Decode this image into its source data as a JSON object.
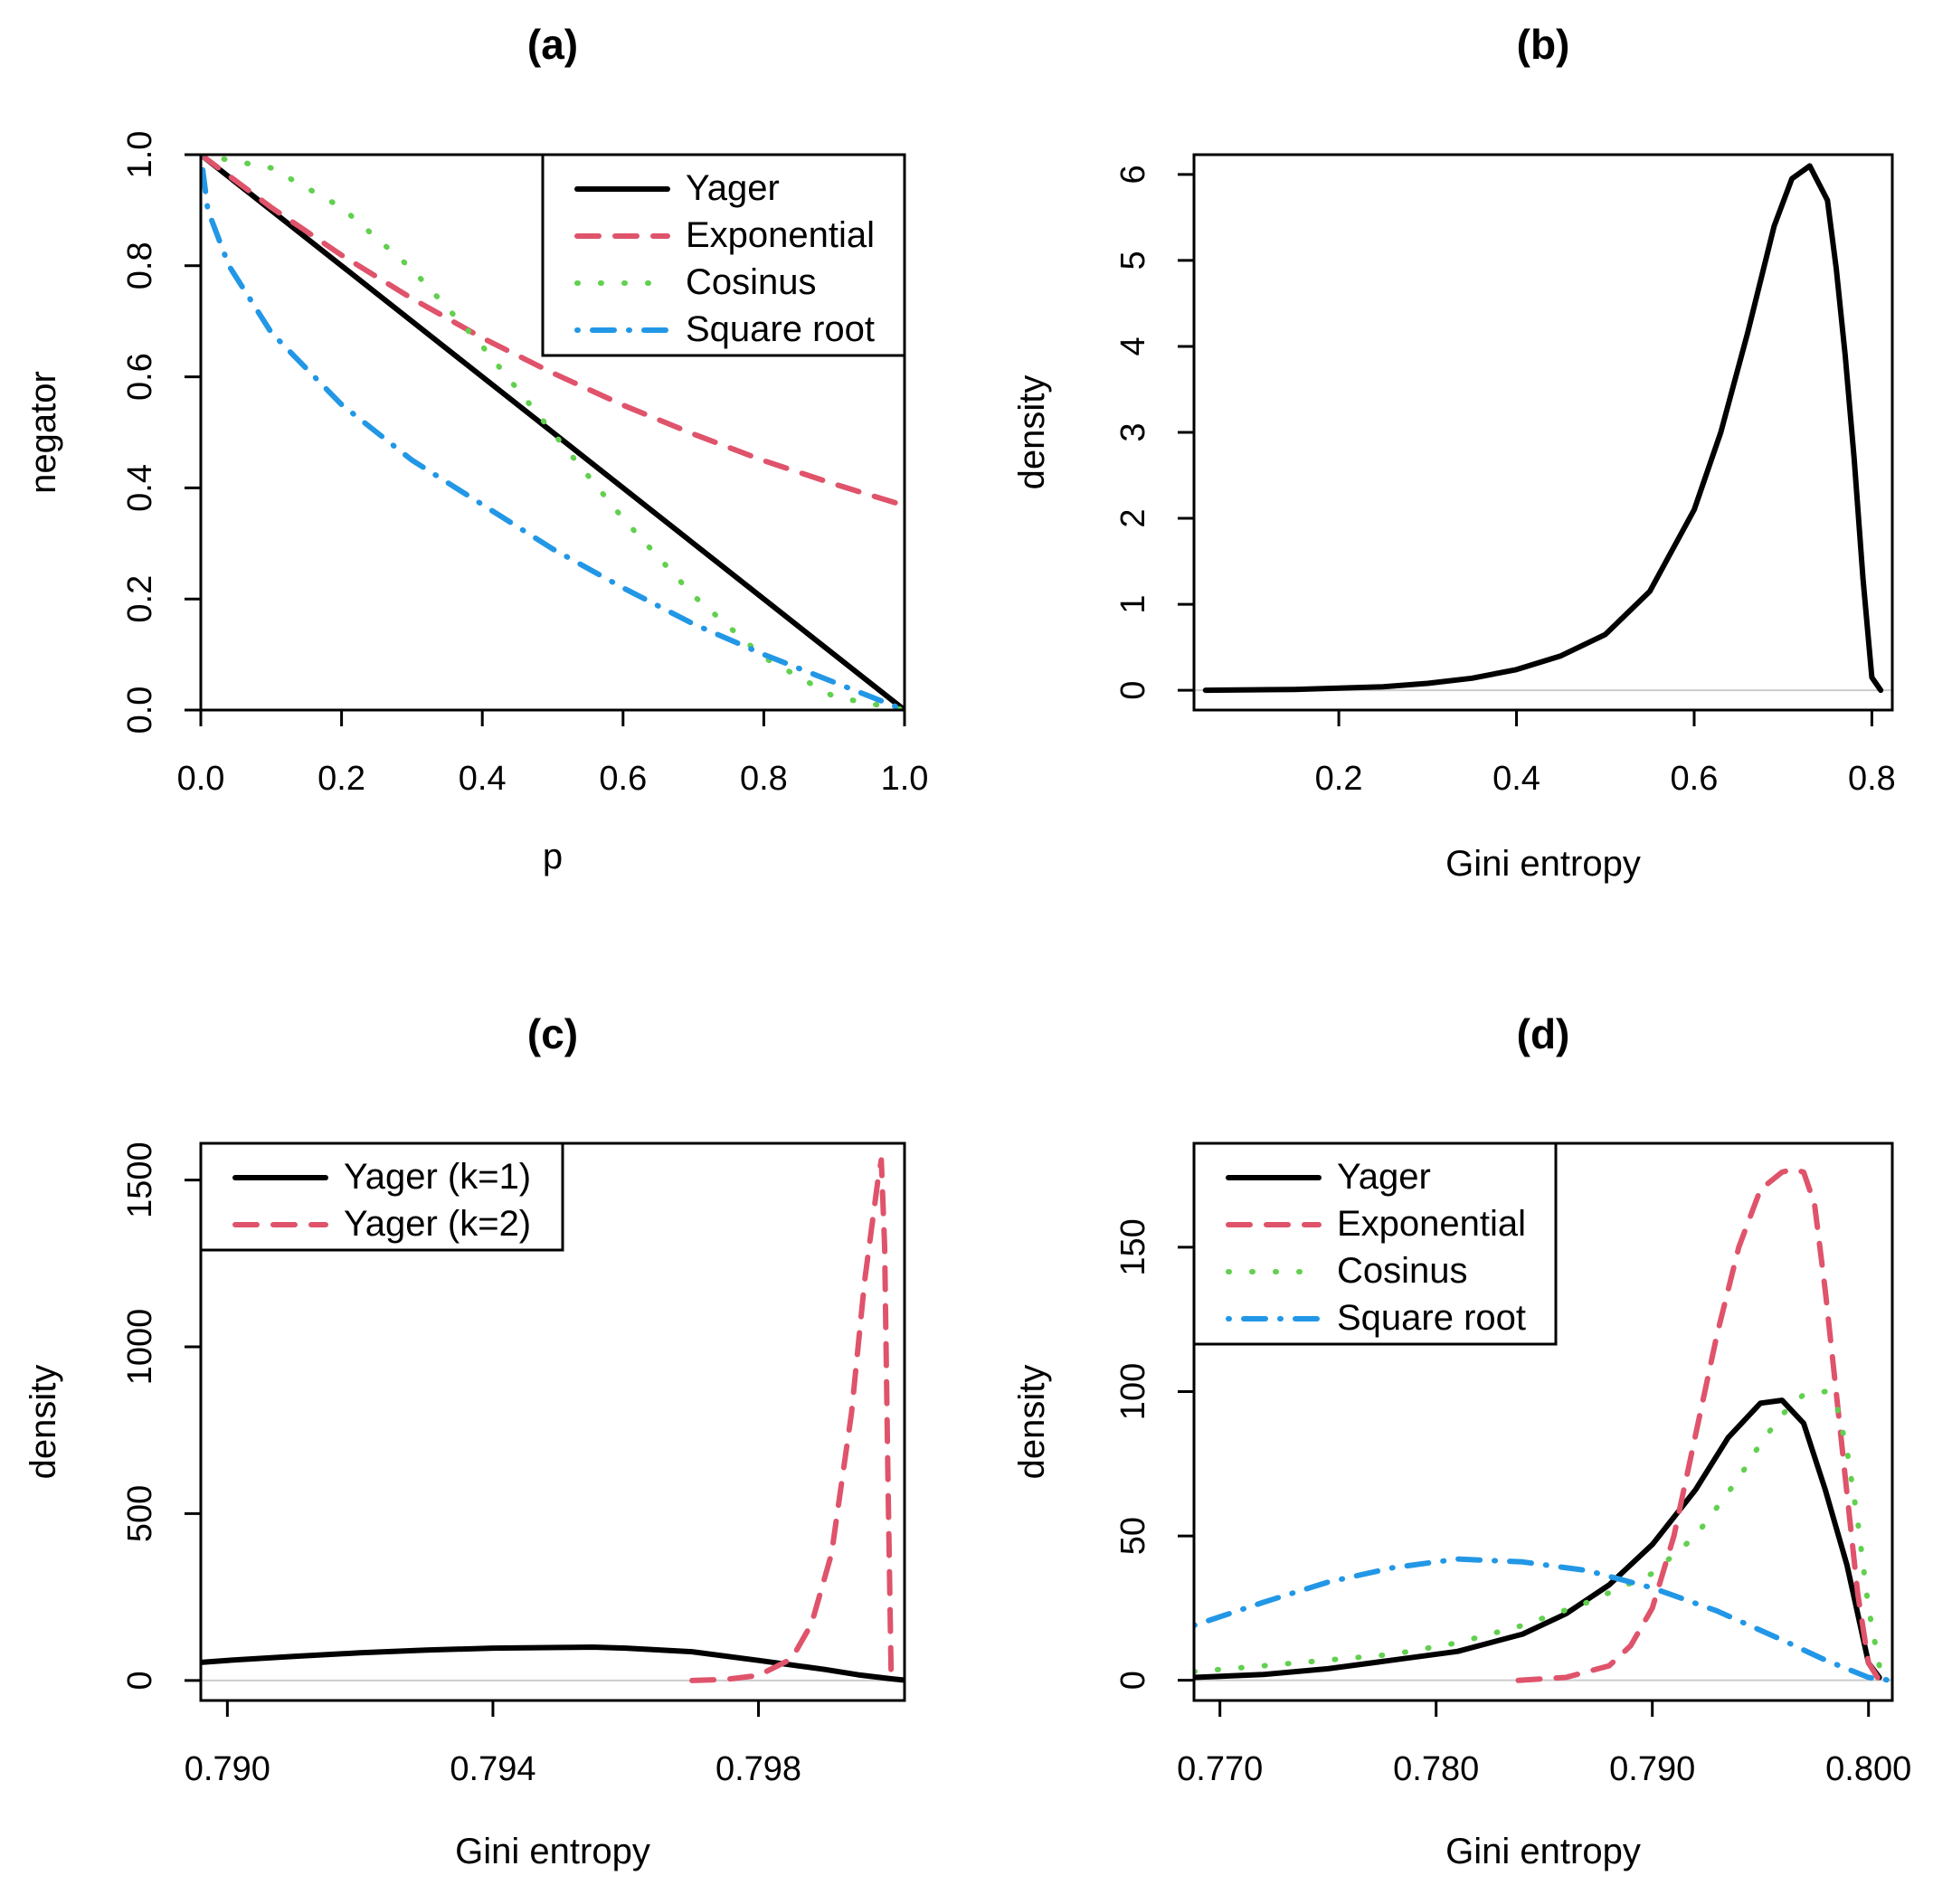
{
  "colors": {
    "black": "#000000",
    "red": "#DF536B",
    "green": "#61D04F",
    "blue": "#2297E6",
    "zero_line": "#cccccc"
  },
  "chart_data": [
    {
      "id": "a",
      "type": "line",
      "title": "(a)",
      "xlabel": "p",
      "ylabel": "negator",
      "xlim": [
        0,
        1
      ],
      "ylim": [
        0,
        1
      ],
      "xticks": [
        "0.0",
        "0.2",
        "0.4",
        "0.6",
        "0.8",
        "1.0"
      ],
      "yticks": [
        "0.0",
        "0.2",
        "0.4",
        "0.6",
        "0.8",
        "1.0"
      ],
      "grid": false,
      "legend": "top-right",
      "series": [
        {
          "name": "Yager",
          "color": "#000000",
          "style": "solid",
          "x": [
            0,
            1
          ],
          "y": [
            1,
            0
          ]
        },
        {
          "name": "Exponential",
          "color": "#DF536B",
          "style": "dashed",
          "x": [
            0,
            0.1,
            0.2,
            0.3,
            0.4,
            0.5,
            0.6,
            0.7,
            0.8,
            0.9,
            1.0
          ],
          "y": [
            1.0,
            0.905,
            0.819,
            0.741,
            0.67,
            0.607,
            0.549,
            0.497,
            0.449,
            0.407,
            0.368
          ]
        },
        {
          "name": "Cosinus",
          "color": "#61D04F",
          "style": "dotted",
          "x": [
            0,
            0.1,
            0.2,
            0.3,
            0.4,
            0.5,
            0.6,
            0.7,
            0.8,
            0.9,
            1.0
          ],
          "y": [
            1.0,
            0.976,
            0.905,
            0.794,
            0.655,
            0.5,
            0.345,
            0.206,
            0.095,
            0.024,
            0.0
          ]
        },
        {
          "name": "Square root",
          "color": "#2297E6",
          "style": "dotdash",
          "x": [
            0,
            0.01,
            0.04,
            0.1,
            0.2,
            0.3,
            0.4,
            0.5,
            0.6,
            0.7,
            0.8,
            0.9,
            1.0
          ],
          "y": [
            1.0,
            0.9,
            0.8,
            0.68,
            0.55,
            0.45,
            0.37,
            0.29,
            0.22,
            0.155,
            0.1,
            0.05,
            0.0
          ]
        }
      ]
    },
    {
      "id": "b",
      "type": "line",
      "title": "(b)",
      "xlabel": "Gini entropy",
      "ylabel": "density",
      "xlim": [
        0.037,
        0.823
      ],
      "ylim": [
        -0.23,
        6.23
      ],
      "xticks": [
        "0.2",
        "0.4",
        "0.6",
        "0.8"
      ],
      "yticks": [
        "0",
        "1",
        "2",
        "3",
        "4",
        "5",
        "6"
      ],
      "grid": false,
      "series": [
        {
          "name": "",
          "color": "#000000",
          "style": "solid",
          "x": [
            0.05,
            0.15,
            0.25,
            0.3,
            0.35,
            0.4,
            0.45,
            0.5,
            0.55,
            0.6,
            0.63,
            0.66,
            0.69,
            0.71,
            0.73,
            0.75,
            0.76,
            0.77,
            0.78,
            0.79,
            0.8,
            0.81
          ],
          "y": [
            0.0,
            0.01,
            0.04,
            0.08,
            0.14,
            0.24,
            0.4,
            0.65,
            1.15,
            2.1,
            3.0,
            4.15,
            5.4,
            5.95,
            6.1,
            5.7,
            4.9,
            3.9,
            2.7,
            1.3,
            0.15,
            0.0
          ]
        }
      ]
    },
    {
      "id": "c",
      "type": "line",
      "title": "(c)",
      "xlabel": "Gini entropy",
      "ylabel": "density",
      "xlim": [
        0.7896,
        0.8002
      ],
      "ylim": [
        -60,
        1610
      ],
      "xticks": [
        "0.790",
        "0.794",
        "0.798"
      ],
      "yticks": [
        "0",
        "500",
        "1000",
        "1500"
      ],
      "grid": false,
      "legend": "top-left",
      "series": [
        {
          "name": "Yager (k=1)",
          "color": "#000000",
          "style": "solid",
          "x": [
            0.7896,
            0.79,
            0.791,
            0.792,
            0.793,
            0.794,
            0.795,
            0.7955,
            0.796,
            0.797,
            0.798,
            0.799,
            0.7995,
            0.8,
            0.8002
          ],
          "y": [
            54,
            60,
            72,
            83,
            91,
            97,
            99,
            100,
            97,
            86,
            60,
            33,
            17,
            5,
            1
          ]
        },
        {
          "name": "Yager (k=2)",
          "color": "#DF536B",
          "style": "dashed",
          "x": [
            0.797,
            0.7975,
            0.798,
            0.7985,
            0.7988,
            0.7991,
            0.7994,
            0.7996,
            0.7998,
            0.79985,
            0.7999,
            0.79995,
            0.8
          ],
          "y": [
            0,
            3,
            15,
            65,
            170,
            380,
            800,
            1200,
            1500,
            1560,
            1300,
            600,
            0
          ]
        }
      ]
    },
    {
      "id": "d",
      "type": "line",
      "title": "(d)",
      "xlabel": "Gini entropy",
      "ylabel": "density",
      "xlim": [
        0.7688,
        0.8011
      ],
      "ylim": [
        -7,
        186
      ],
      "xticks": [
        "0.770",
        "0.780",
        "0.790",
        "0.800"
      ],
      "yticks": [
        "0",
        "50",
        "100",
        "150"
      ],
      "grid": false,
      "legend": "top-left",
      "series": [
        {
          "name": "Yager",
          "color": "#000000",
          "style": "solid",
          "x": [
            0.7688,
            0.772,
            0.775,
            0.778,
            0.781,
            0.784,
            0.786,
            0.788,
            0.79,
            0.792,
            0.7935,
            0.795,
            0.796,
            0.797,
            0.798,
            0.799,
            0.7995,
            0.8,
            0.8005
          ],
          "y": [
            1,
            2,
            4,
            7,
            10,
            16,
            23,
            33,
            47,
            66,
            84,
            96,
            97,
            89,
            66,
            40,
            23,
            6,
            1
          ]
        },
        {
          "name": "Exponential",
          "color": "#DF536B",
          "style": "dashed",
          "x": [
            0.7838,
            0.786,
            0.788,
            0.789,
            0.79,
            0.791,
            0.792,
            0.793,
            0.794,
            0.795,
            0.796,
            0.7965,
            0.797,
            0.7975,
            0.798,
            0.7985,
            0.799,
            0.7995,
            0.8,
            0.8005
          ],
          "y": [
            0,
            1,
            5,
            12,
            25,
            50,
            85,
            120,
            150,
            170,
            176,
            177,
            176,
            165,
            135,
            100,
            65,
            30,
            6,
            0
          ]
        },
        {
          "name": "Cosinus",
          "color": "#61D04F",
          "style": "dotted",
          "x": [
            0.7688,
            0.772,
            0.775,
            0.778,
            0.781,
            0.784,
            0.787,
            0.79,
            0.792,
            0.794,
            0.795,
            0.796,
            0.797,
            0.798,
            0.7985,
            0.799,
            0.7995,
            0.8,
            0.8005,
            0.801
          ],
          "y": [
            3,
            5,
            7,
            9,
            13,
            19,
            27,
            37,
            50,
            70,
            82,
            92,
            99,
            100,
            96,
            80,
            55,
            25,
            5,
            1
          ]
        },
        {
          "name": "Square root",
          "color": "#2297E6",
          "style": "dotdash",
          "x": [
            0.7688,
            0.772,
            0.775,
            0.778,
            0.781,
            0.784,
            0.787,
            0.79,
            0.793,
            0.796,
            0.798,
            0.8,
            0.801
          ],
          "y": [
            19,
            27,
            34,
            39,
            42,
            41,
            38,
            32,
            24,
            14,
            7,
            1,
            0
          ]
        }
      ]
    }
  ]
}
